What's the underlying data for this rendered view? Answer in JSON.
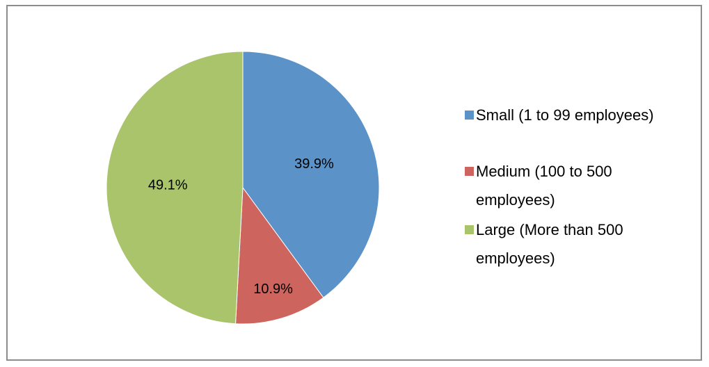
{
  "chart_data": {
    "type": "pie",
    "categories": [
      "Small (1 to 99 employees)",
      "Medium (100 to 500 employees)",
      "Large (More than 500 employees)"
    ],
    "values": [
      39.9,
      10.9,
      49.1
    ],
    "value_labels": [
      "39.9%",
      "10.9%",
      "49.1%"
    ],
    "colors": [
      "#5b93c8",
      "#cd645e",
      "#a9c46a"
    ],
    "legend": "right"
  }
}
